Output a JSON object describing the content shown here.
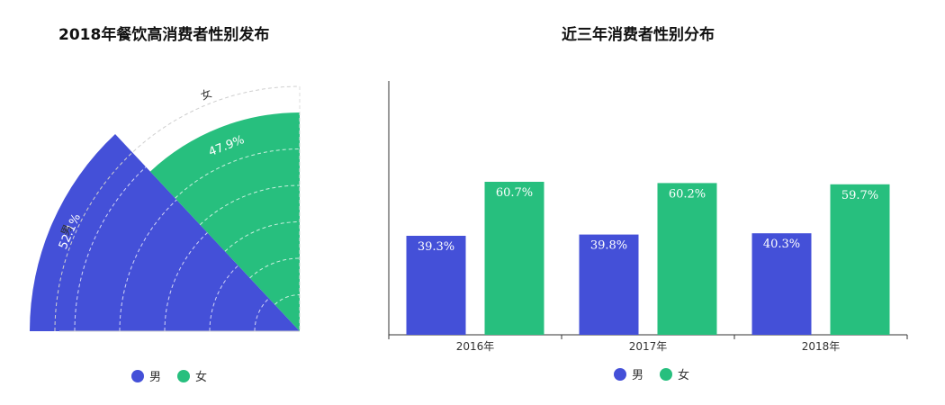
{
  "colors": {
    "male": "#4450d8",
    "female": "#27bf7e"
  },
  "legend": [
    {
      "label": "男",
      "color": "#4450d8"
    },
    {
      "label": "女",
      "color": "#27bf7e"
    }
  ],
  "chart_data": [
    {
      "type": "pie",
      "title": "2018年餐饮高消费者性别发布",
      "slices": [
        {
          "name": "男",
          "value": 52.1,
          "label": "52.1%"
        },
        {
          "name": "女",
          "value": 47.9,
          "label": "47.9%"
        }
      ]
    },
    {
      "type": "bar",
      "title": "近三年消费者性别分布",
      "categories": [
        "2016年",
        "2017年",
        "2018年"
      ],
      "series": [
        {
          "name": "男",
          "values": [
            39.3,
            39.8,
            40.3
          ],
          "labels": [
            "39.3%",
            "39.8%",
            "40.3%"
          ]
        },
        {
          "name": "女",
          "values": [
            60.7,
            60.2,
            59.7
          ],
          "labels": [
            "60.7%",
            "60.2%",
            "59.7%"
          ]
        }
      ],
      "ylim": [
        0,
        100
      ]
    }
  ]
}
